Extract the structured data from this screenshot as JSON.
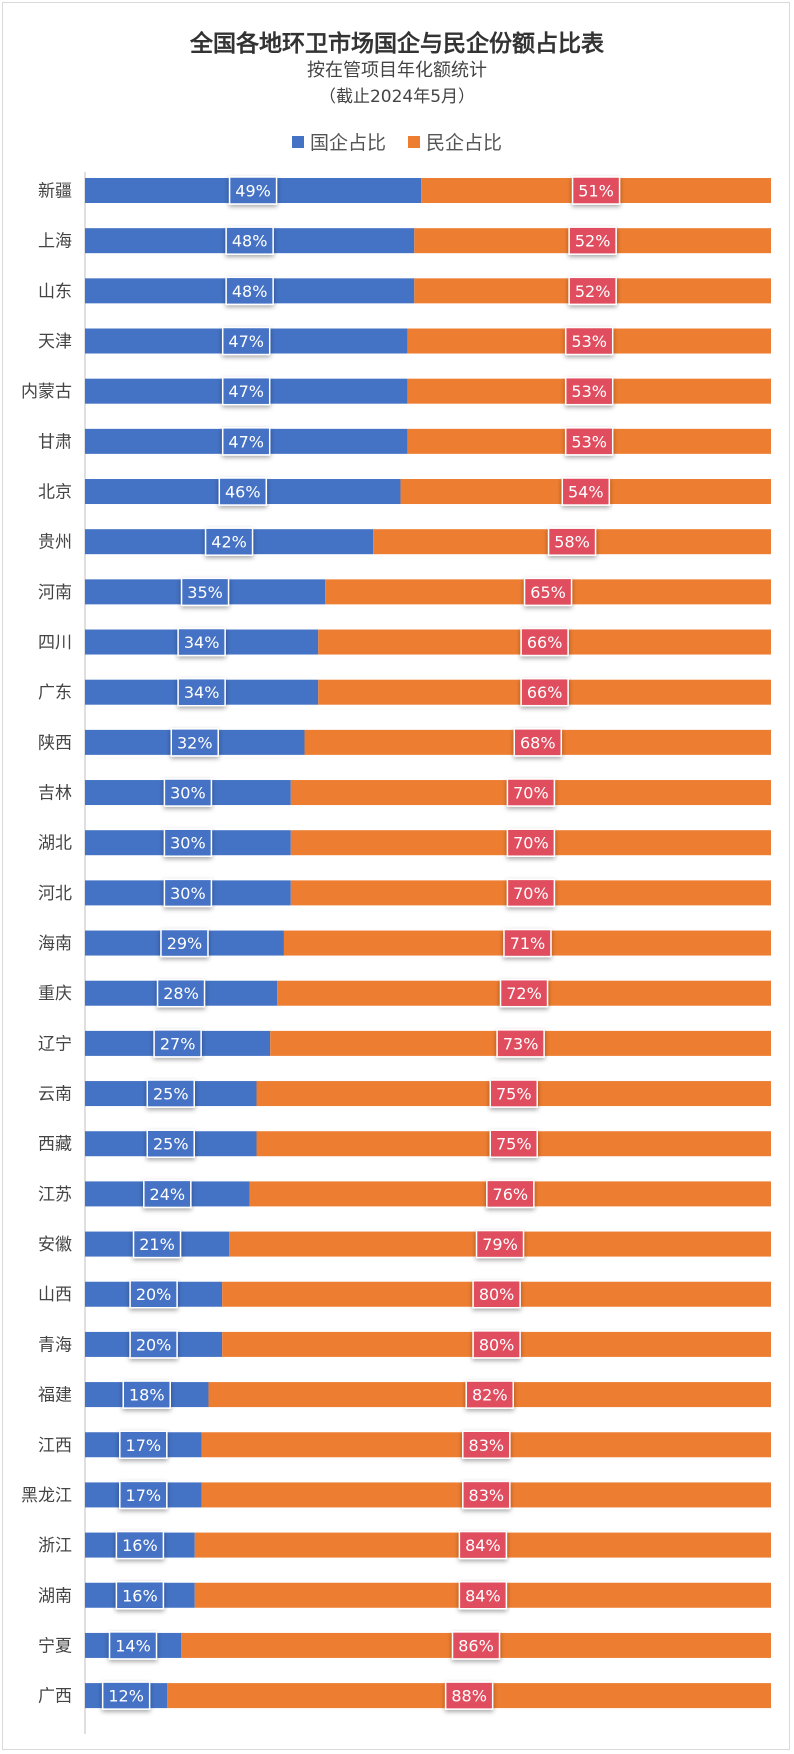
{
  "chart_data": {
    "type": "bar",
    "orientation": "horizontal-stacked-100",
    "title": "全国各地环卫市场国企与民企份额占比表",
    "subtitle": "按在管项目年化额统计",
    "note": "（截止2024年5月）",
    "legend": {
      "position": "top",
      "items": [
        "国企占比",
        "民企占比"
      ]
    },
    "categories": [
      "新疆",
      "上海",
      "山东",
      "天津",
      "内蒙古",
      "甘肃",
      "北京",
      "贵州",
      "河南",
      "四川",
      "广东",
      "陕西",
      "吉林",
      "湖北",
      "河北",
      "海南",
      "重庆",
      "辽宁",
      "云南",
      "西藏",
      "江苏",
      "安徽",
      "山西",
      "青海",
      "福建",
      "江西",
      "黑龙江",
      "浙江",
      "湖南",
      "宁夏",
      "广西"
    ],
    "series": [
      {
        "name": "国企占比",
        "color": "#4472C4",
        "values": [
          49,
          48,
          48,
          47,
          47,
          47,
          46,
          42,
          35,
          34,
          34,
          32,
          30,
          30,
          30,
          29,
          28,
          27,
          25,
          25,
          24,
          21,
          20,
          20,
          18,
          17,
          17,
          16,
          16,
          14,
          12
        ]
      },
      {
        "name": "民企占比",
        "color": "#ED7D31",
        "values": [
          51,
          52,
          52,
          53,
          53,
          53,
          54,
          58,
          65,
          66,
          66,
          68,
          70,
          70,
          70,
          71,
          72,
          73,
          75,
          75,
          76,
          79,
          80,
          80,
          82,
          83,
          83,
          84,
          84,
          86,
          88
        ]
      }
    ],
    "label_colors": {
      "soe": "#4472C4",
      "private": "#E04E5E"
    },
    "xlim": [
      0,
      100
    ],
    "unit": "%"
  }
}
